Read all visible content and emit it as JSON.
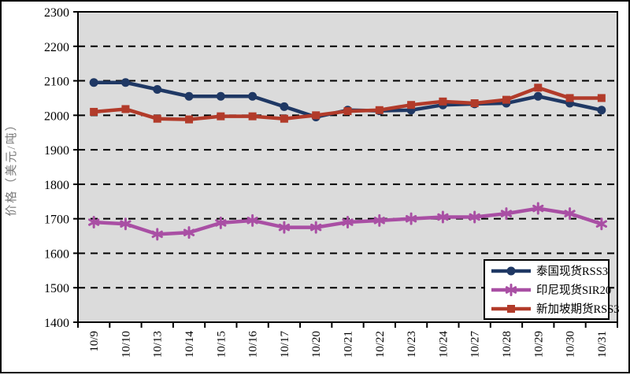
{
  "chart_data": {
    "type": "line",
    "title": "",
    "xlabel": "",
    "ylabel": "价格（美元/吨）",
    "ylim": [
      1400,
      2300
    ],
    "y_tick_step": 100,
    "y_ticks": [
      1400,
      1500,
      1600,
      1700,
      1800,
      1900,
      2000,
      2100,
      2200,
      2300
    ],
    "grid": "horizontal-dashed-black",
    "plot_background": "#dbdbdb",
    "axis_color": "#000000",
    "legend_position": "inside-bottom-right",
    "categories": [
      "10/9",
      "10/10",
      "10/13",
      "10/14",
      "10/15",
      "10/16",
      "10/17",
      "10/20",
      "10/21",
      "10/22",
      "10/23",
      "10/24",
      "10/27",
      "10/28",
      "10/29",
      "10/30",
      "10/31"
    ],
    "series": [
      {
        "name": "泰国现货RSS3",
        "color": "#1F3864",
        "marker": "circle",
        "values": [
          2095,
          2095,
          2075,
          2055,
          2055,
          2055,
          2025,
          1995,
          2015,
          2013,
          2015,
          2030,
          2033,
          2035,
          2055,
          2035,
          2015
        ]
      },
      {
        "name": "印尼现货SIR20",
        "color": "#A94FA4",
        "marker": "asterisk",
        "values": [
          1690,
          1685,
          1655,
          1660,
          1688,
          1695,
          1675,
          1675,
          1690,
          1695,
          1700,
          1705,
          1705,
          1715,
          1730,
          1715,
          1685
        ]
      },
      {
        "name": "新加坡期货RSS3",
        "color": "#B23B2A",
        "marker": "square",
        "values": [
          2010,
          2018,
          1990,
          1988,
          1997,
          1997,
          1990,
          2000,
          2012,
          2015,
          2030,
          2040,
          2035,
          2045,
          2080,
          2050,
          2050
        ]
      }
    ]
  }
}
